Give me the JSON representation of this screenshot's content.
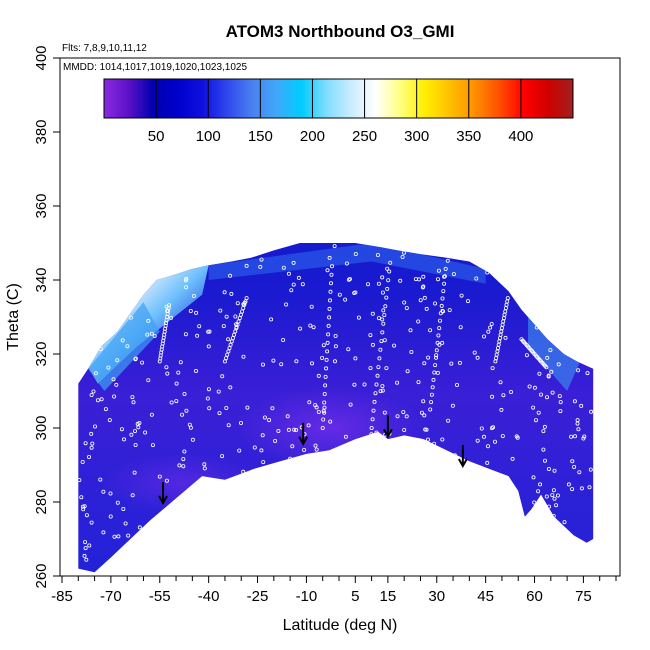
{
  "chart_data": {
    "type": "heatmap",
    "title": "ATOM3 Northbound O3_GMI",
    "annotations": {
      "flights": "Flts: 7,8,9,10,11,12",
      "dates": "MMDD: 1014,1017,1019,1020,1023,1025"
    },
    "xlabel": "Latitude (deg N)",
    "ylabel": "Theta (C)",
    "xlim": [
      -85,
      85
    ],
    "ylim": [
      260,
      400
    ],
    "xticks": [
      -85,
      -70,
      -55,
      -40,
      -25,
      -10,
      5,
      15,
      30,
      45,
      60,
      75
    ],
    "yticks": [
      260,
      280,
      300,
      320,
      340,
      360,
      380,
      400
    ],
    "colorbar": {
      "range": [
        0,
        450
      ],
      "ticks": [
        50,
        100,
        150,
        200,
        250,
        300,
        350,
        400
      ],
      "colors": [
        "#8a2be2",
        "#5a10c8",
        "#0000b0",
        "#0000cd",
        "#1010e0",
        "#3048ee",
        "#4a80f0",
        "#40a8f8",
        "#00ccff",
        "#80dcff",
        "#c8ecff",
        "#ffffff",
        "#ffff80",
        "#ffee00",
        "#ffc000",
        "#ff9000",
        "#ff5000",
        "#ff0000",
        "#d00000",
        "#a02020"
      ]
    },
    "boundary_top": [
      [
        -80,
        312
      ],
      [
        -77,
        316
      ],
      [
        -73,
        322
      ],
      [
        -68,
        326
      ],
      [
        -64,
        331
      ],
      [
        -60,
        336
      ],
      [
        -56,
        340
      ],
      [
        -52,
        341
      ],
      [
        -45,
        343
      ],
      [
        -40,
        344
      ],
      [
        -33,
        345
      ],
      [
        -27,
        346
      ],
      [
        -20,
        348
      ],
      [
        -12,
        350
      ],
      [
        -5,
        350
      ],
      [
        5,
        350
      ],
      [
        12,
        349
      ],
      [
        18,
        348
      ],
      [
        25,
        347
      ],
      [
        33,
        346
      ],
      [
        40,
        345
      ],
      [
        46,
        342
      ],
      [
        52,
        337
      ],
      [
        56,
        332
      ],
      [
        60,
        328
      ],
      [
        64,
        324
      ],
      [
        69,
        320
      ],
      [
        73,
        318
      ],
      [
        78,
        316
      ]
    ],
    "boundary_bottom": [
      [
        78,
        270
      ],
      [
        76,
        269
      ],
      [
        72,
        271
      ],
      [
        66,
        276
      ],
      [
        62,
        282
      ],
      [
        59,
        278
      ],
      [
        57,
        276
      ],
      [
        55,
        283
      ],
      [
        52,
        287
      ],
      [
        46,
        289
      ],
      [
        40,
        291
      ],
      [
        33,
        294
      ],
      [
        26,
        297
      ],
      [
        20,
        298
      ],
      [
        15,
        297
      ],
      [
        12,
        299
      ],
      [
        5,
        297
      ],
      [
        -3,
        294
      ],
      [
        -10,
        293
      ],
      [
        -18,
        291
      ],
      [
        -26,
        289
      ],
      [
        -35,
        286
      ],
      [
        -42,
        287
      ],
      [
        -50,
        281
      ],
      [
        -58,
        275
      ],
      [
        -64,
        270
      ],
      [
        -70,
        265
      ],
      [
        -75,
        261
      ],
      [
        -80,
        262
      ]
    ],
    "arrows": [
      {
        "lat": -54,
        "theta": 280
      },
      {
        "lat": -11,
        "theta": 296
      },
      {
        "lat": 15,
        "theta": 298
      },
      {
        "lat": 38,
        "theta": 290
      }
    ]
  }
}
